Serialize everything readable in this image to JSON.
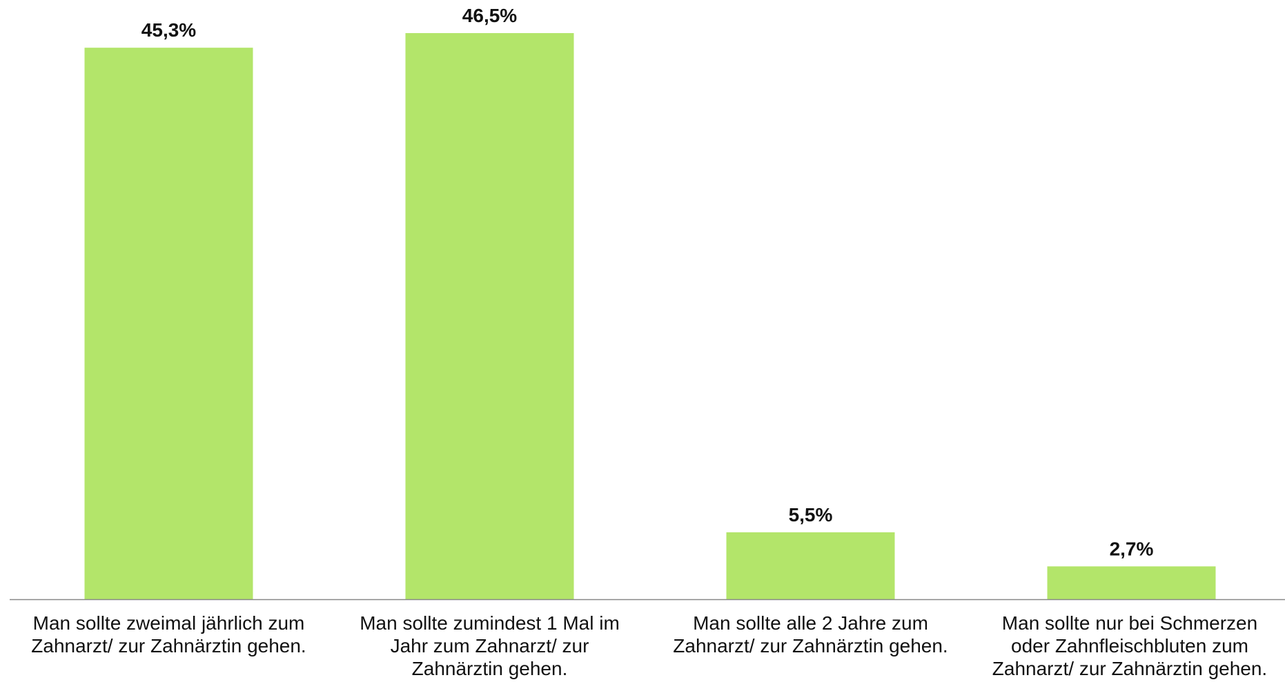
{
  "chart_data": {
    "type": "bar",
    "categories": [
      "Man sollte zweimal jährlich zum\nZahnarzt/ zur Zahnärztin gehen.",
      "Man sollte zumindest 1 Mal im\nJahr zum Zahnarzt/ zur\nZahnärztin gehen.",
      "Man sollte alle 2 Jahre zum\nZahnarzt/ zur Zahnärztin gehen.",
      "Man sollte nur bei Schmerzen\noder Zahnfleischbluten zum\nZahnarzt/ zur Zahnärztin gehen."
    ],
    "values": [
      45.3,
      46.5,
      5.5,
      2.7
    ],
    "data_labels": [
      "45,3%",
      "46,5%",
      "5,5%",
      "2,7%"
    ],
    "title": "",
    "xlabel": "",
    "ylabel": "",
    "ylim": [
      0,
      46.5
    ],
    "grid": false,
    "legend": "none",
    "colors": {
      "bar": "#b3e56a",
      "axis": "#888888",
      "text": "#111111"
    }
  }
}
